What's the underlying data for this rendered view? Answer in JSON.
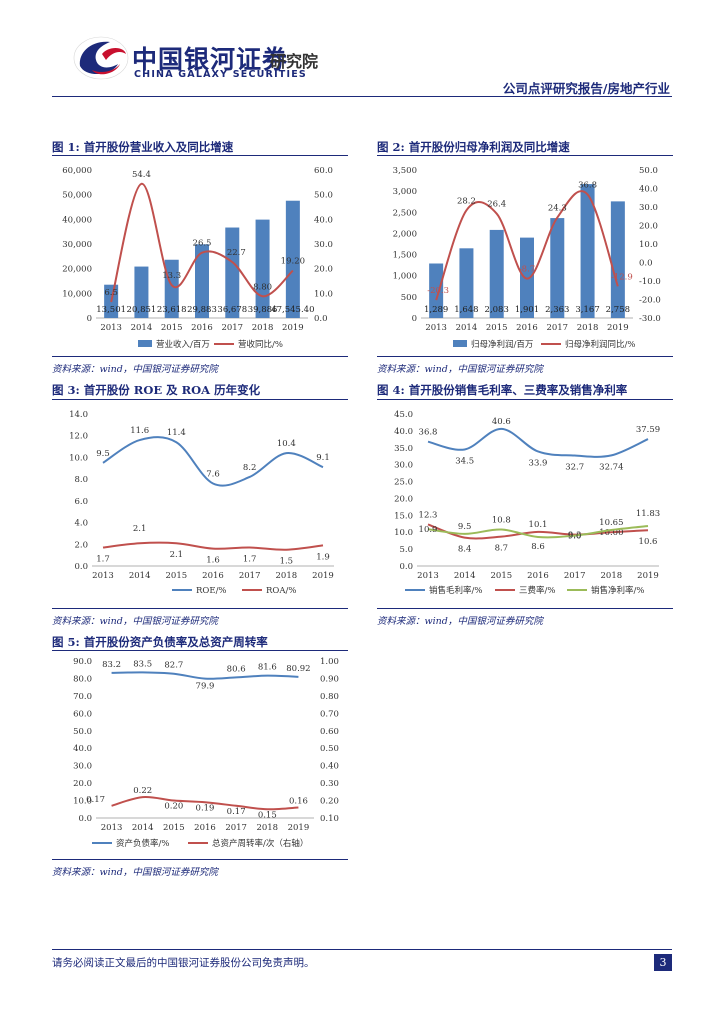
{
  "header": {
    "company_cn": "中国银河证券",
    "company_en": "CHINA GALAXY SECURITIES",
    "department": "研究院",
    "report_tag": "公司点评研究报告/房地产行业"
  },
  "colors": {
    "bar": "#4f81bd",
    "red": "#c0504d",
    "green": "#9bbb59",
    "navy": "#1d2a7a"
  },
  "figures": [
    {
      "title": "图 1:  首开股份营业收入及同比增速",
      "source": "资料来源：wind，中国银河证券研究院"
    },
    {
      "title": "图 2:  首开股份归母净利润及同比增速",
      "source": "资料来源：wind，中国银河证券研究院"
    },
    {
      "title": "图 3:  首开股份 ROE 及 ROA 历年变化",
      "source": "资料来源：wind，中国银河证券研究院"
    },
    {
      "title": "图 4:  首开股份销售毛利率、三费率及销售净利率",
      "source": "资料来源：wind，中国银河证券研究院"
    },
    {
      "title": "图 5:  首开股份资产负债率及总资产周转率",
      "source": "资料来源：wind，中国银河证券研究院"
    }
  ],
  "chart_data": [
    {
      "type": "bar+line",
      "categories": [
        "2013",
        "2014",
        "2015",
        "2016",
        "2017",
        "2018",
        "2019"
      ],
      "bar_series": {
        "name": "营业收入/百万",
        "values": [
          13501,
          20851,
          23618,
          29883,
          36678,
          39886,
          47545.4
        ],
        "labels": [
          "13,501",
          "20,851",
          "23,618",
          "29,883",
          "36,678",
          "39,886",
          "47,545.40"
        ]
      },
      "line_series": {
        "name": "营收同比/%",
        "values": [
          6.5,
          54.4,
          13.3,
          26.5,
          22.7,
          8.8,
          19.2
        ],
        "labels": [
          "6.5",
          "54.4",
          "13.3",
          "26.5",
          "22.7",
          "8.80",
          "19.20"
        ]
      },
      "left_ticks": [
        "0",
        "10,000",
        "20,000",
        "30,000",
        "40,000",
        "50,000",
        "60,000"
      ],
      "right_ticks": [
        "0.0",
        "10.0",
        "20.0",
        "30.0",
        "40.0",
        "50.0",
        "60.0"
      ],
      "ylim_left": [
        0,
        60000
      ],
      "ylim_right": [
        0,
        60
      ]
    },
    {
      "type": "bar+line",
      "categories": [
        "2013",
        "2014",
        "2015",
        "2016",
        "2017",
        "2018",
        "2019"
      ],
      "bar_series": {
        "name": "归母净利润/百万",
        "values": [
          1289,
          1648,
          2083,
          1901,
          2363,
          3167,
          2758
        ],
        "labels": [
          "1,289",
          "1,648",
          "2,083",
          "1,901",
          "2,363",
          "3,167",
          "2,758"
        ]
      },
      "line_series": {
        "name": "归母净利润同比/%",
        "values": [
          -20.3,
          28.2,
          26.4,
          -8.7,
          24.3,
          36.8,
          -12.9
        ],
        "labels": [
          "-20.3",
          "28.2",
          "26.4",
          "-8.7",
          "24.3",
          "36.8",
          "-12.9"
        ]
      },
      "left_ticks": [
        "0",
        "500",
        "1,000",
        "1,500",
        "2,000",
        "2,500",
        "3,000",
        "3,500"
      ],
      "right_ticks": [
        "-30.0",
        "-20.0",
        "-10.0",
        "0.0",
        "10.0",
        "20.0",
        "30.0",
        "40.0",
        "50.0"
      ],
      "ylim_left": [
        0,
        3500
      ],
      "ylim_right": [
        -30,
        50
      ]
    },
    {
      "type": "line",
      "categories": [
        "2013",
        "2014",
        "2015",
        "2016",
        "2017",
        "2018",
        "2019"
      ],
      "series": [
        {
          "name": "ROE/%",
          "values": [
            9.5,
            11.6,
            11.4,
            7.6,
            8.2,
            10.4,
            9.1
          ],
          "labels": [
            "9.5",
            "11.6",
            "11.4",
            "7.6",
            "8.2",
            "10.4",
            "9.1"
          ]
        },
        {
          "name": "ROA/%",
          "values": [
            1.7,
            2.1,
            2.1,
            1.6,
            1.7,
            1.5,
            1.9
          ],
          "labels": [
            "1.7",
            "2.1",
            "2.1",
            "1.6",
            "1.7",
            "1.5",
            "1.9"
          ]
        }
      ],
      "y_ticks": [
        "0.0",
        "2.0",
        "4.0",
        "6.0",
        "8.0",
        "10.0",
        "12.0",
        "14.0"
      ],
      "ylim": [
        0,
        14
      ]
    },
    {
      "type": "line",
      "categories": [
        "2013",
        "2014",
        "2015",
        "2016",
        "2017",
        "2018",
        "2019"
      ],
      "series": [
        {
          "name": "销售毛利率/%",
          "values": [
            36.8,
            34.5,
            40.6,
            33.9,
            32.7,
            32.74,
            37.59
          ],
          "labels": [
            "36.8",
            "34.5",
            "40.6",
            "33.9",
            "32.7",
            "32.74",
            "37.59"
          ]
        },
        {
          "name": "三费率/%",
          "values": [
            12.3,
            8.4,
            8.7,
            10.1,
            9.3,
            10.0,
            10.6
          ],
          "labels": [
            "12.3",
            "8.4",
            "8.7",
            "10.1",
            "9.3",
            "10.00",
            "10.6"
          ]
        },
        {
          "name": "销售净利率/%",
          "values": [
            10.9,
            9.5,
            10.8,
            8.6,
            9.0,
            10.65,
            11.83
          ],
          "labels": [
            "10.9",
            "9.5",
            "10.8",
            "8.6",
            "9.0",
            "10.65",
            "11.83"
          ]
        }
      ],
      "y_ticks": [
        "0.0",
        "5.0",
        "10.0",
        "15.0",
        "20.0",
        "25.0",
        "30.0",
        "35.0",
        "40.0",
        "45.0"
      ],
      "ylim": [
        0,
        45
      ]
    },
    {
      "type": "line",
      "categories": [
        "2013",
        "2014",
        "2015",
        "2016",
        "2017",
        "2018",
        "2019"
      ],
      "series": [
        {
          "name": "资产负债率/%",
          "axis": "left",
          "values": [
            83.2,
            83.5,
            82.7,
            79.9,
            80.6,
            81.6,
            80.92
          ],
          "labels": [
            "83.2",
            "83.5",
            "82.7",
            "79.9",
            "80.6",
            "81.6",
            "80.92"
          ]
        },
        {
          "name": "总资产周转率/次（右轴）",
          "axis": "right",
          "values": [
            0.17,
            0.22,
            0.2,
            0.19,
            0.17,
            0.15,
            0.16
          ],
          "labels": [
            "0.17",
            "0.22",
            "0.20",
            "0.19",
            "0.17",
            "0.15",
            "0.16"
          ]
        }
      ],
      "left_ticks": [
        "0.0",
        "10.0",
        "20.0",
        "30.0",
        "40.0",
        "50.0",
        "60.0",
        "70.0",
        "80.0",
        "90.0"
      ],
      "right_ticks": [
        "0.10",
        "0.20",
        "0.30",
        "0.40",
        "0.50",
        "0.60",
        "0.70",
        "0.80",
        "0.90",
        "1.00"
      ],
      "ylim_left": [
        0,
        90
      ],
      "ylim_right": [
        0.1,
        1.0
      ]
    }
  ],
  "footer": {
    "disclaimer": "请务必阅读正文最后的中国银河证券股份公司免责声明。",
    "page_number": "3"
  }
}
